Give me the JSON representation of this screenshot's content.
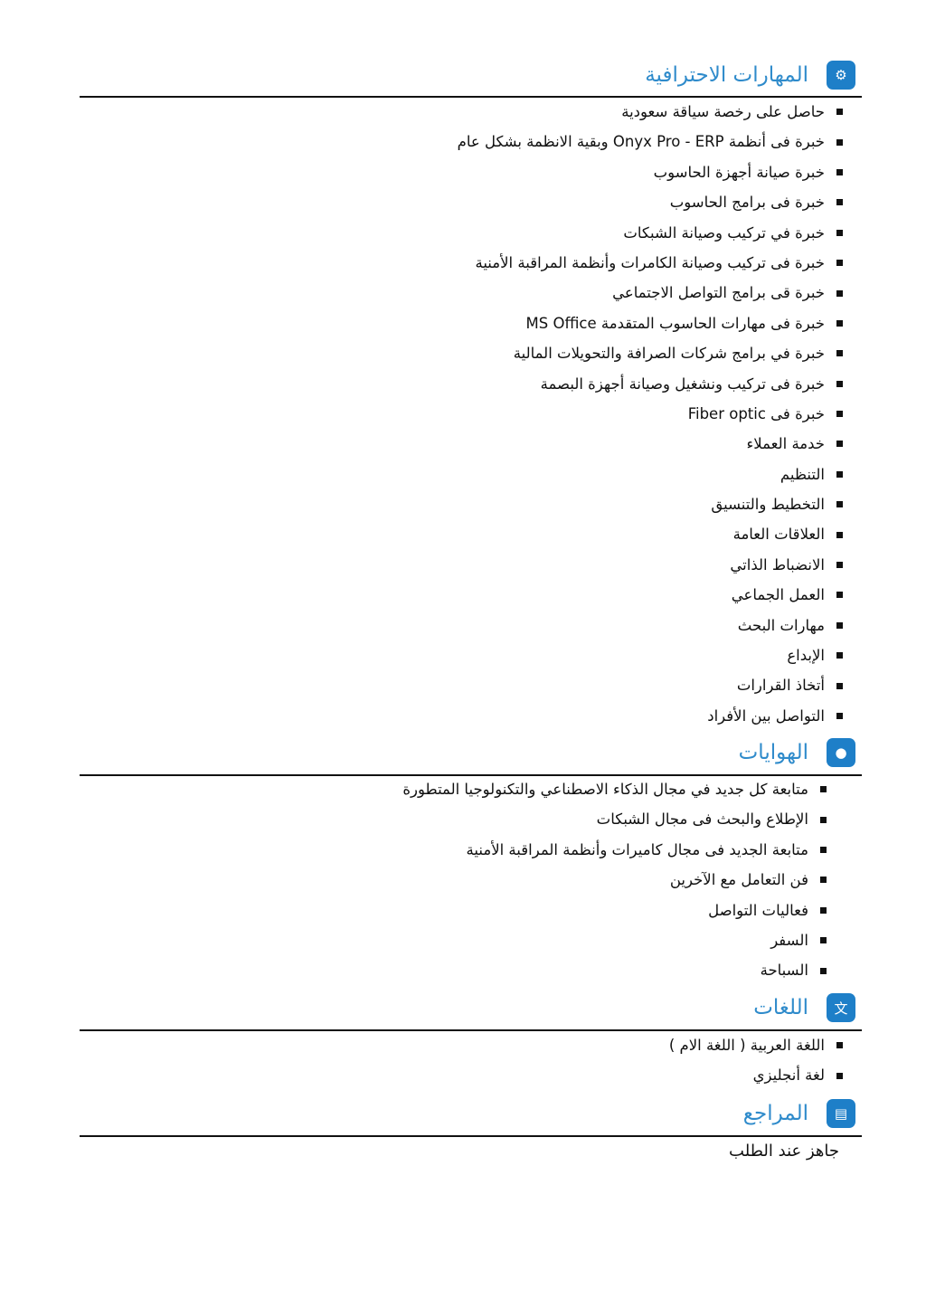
{
  "sections": {
    "skills": {
      "title": "المهارات الاحترافية",
      "icon": "user-gear-icon",
      "items": [
        "حاصل على رخصة سياقة سعودية",
        "خبرة فى أنظمة Onyx Pro - ERP وبقية الانظمة بشكل عام",
        "خبرة صيانة أجهزة الحاسوب",
        "خبرة فى برامج الحاسوب",
        "خبرة في تركيب وصيانة الشبكات",
        "خبرة فى تركيب وصيانة الكامرات وأنظمة المراقبة الأمنية",
        "خبرة قى برامج التواصل الاجتماعي",
        "خبرة فى مهارات الحاسوب المتقدمة MS Office",
        "خبرة في برامج شركات الصرافة والتحويلات المالية",
        "خبرة فى تركيب ونشغيل وصيانة أجهزة البصمة",
        "خبرة فى Fiber optic",
        "خدمة العملاء",
        "التنظيم",
        "التخطيط والتنسيق",
        "العلاقات العامة",
        "الانضباط الذاتي",
        "العمل الجماعي",
        "مهارات البحث",
        "الإبداع",
        "أتخاذ القرارات",
        "التواصل بين الأفراد"
      ]
    },
    "hobbies": {
      "title": "الهوايات",
      "icon": "palette-icon",
      "items": [
        "متابعة كل جديد في مجال الذكاء الاصطناعي والتكنولوجيا المتطورة",
        "الإطلاع والبحث فى مجال الشبكات",
        "متابعة الجديد فى مجال كاميرات وأنظمة المراقبة الأمنية",
        "فن التعامل مع الآخرين",
        "فعاليات التواصل",
        "السفر",
        "السباحة"
      ]
    },
    "languages": {
      "title": "اللغات",
      "icon": "translate-icon",
      "items": [
        "اللغة العربية ( اللغة الام )",
        "لغة أنجليزي"
      ]
    },
    "references": {
      "title": "المراجع",
      "icon": "book-icon",
      "text": "جاهز عند الطلب"
    }
  },
  "colors": {
    "accent": "#1e7fc8",
    "heading": "#2f8bcb",
    "text": "#111111"
  }
}
